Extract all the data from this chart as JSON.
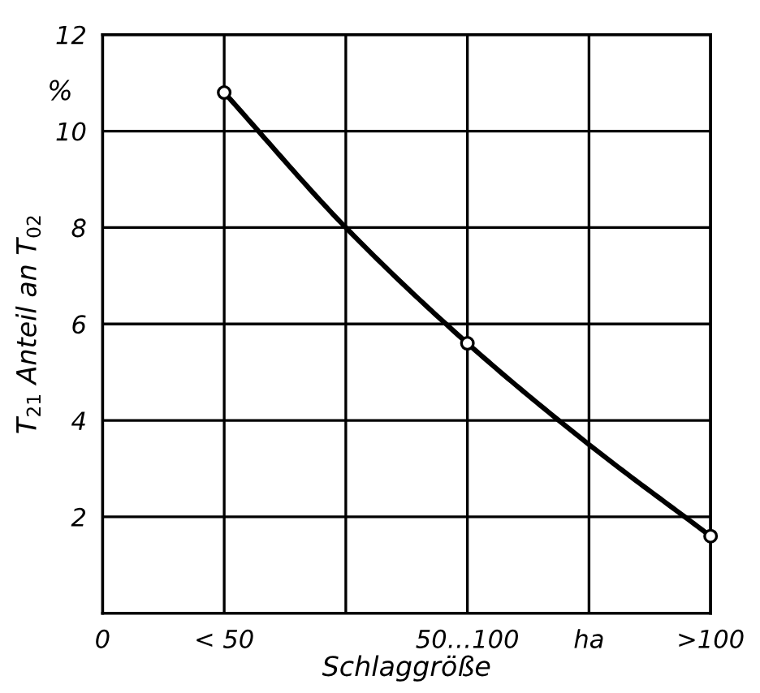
{
  "chart_data": {
    "type": "line",
    "xlabel": "Schlaggröße",
    "ylabel": "T$_{21}$ Anteil an T$_{02}$",
    "annotations": [
      "%"
    ],
    "categories": [
      "0",
      "< 50",
      null,
      "50…100",
      "ha",
      ">100"
    ],
    "series": [
      {
        "color": "#000000",
        "marker": "none",
        "values": [
          null,
          10.8,
          8,
          5.6,
          3.5,
          1.6
        ]
      },
      {
        "type": "scatter",
        "color": "#000000",
        "marker": "circle",
        "values": [
          null,
          10.8,
          null,
          5.6,
          null,
          1.6
        ]
      }
    ],
    "ylim": [
      0,
      12
    ],
    "yticks": [
      {
        "value": 0,
        "label": null
      },
      2,
      4,
      6,
      8,
      10,
      12
    ],
    "grid": true
  }
}
